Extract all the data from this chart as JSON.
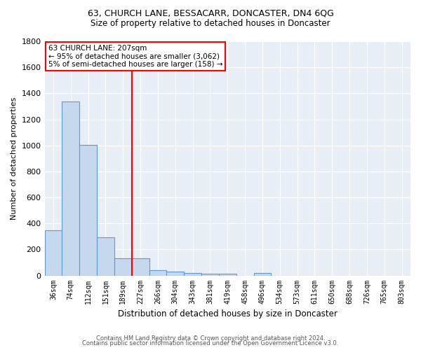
{
  "title": "63, CHURCH LANE, BESSACARR, DONCASTER, DN4 6QG",
  "subtitle": "Size of property relative to detached houses in Doncaster",
  "xlabel": "Distribution of detached houses by size in Doncaster",
  "ylabel": "Number of detached properties",
  "footnote1": "Contains HM Land Registry data © Crown copyright and database right 2024.",
  "footnote2": "Contains public sector information licensed under the Open Government Licence v3.0.",
  "bar_labels": [
    "36sqm",
    "74sqm",
    "112sqm",
    "151sqm",
    "189sqm",
    "227sqm",
    "266sqm",
    "304sqm",
    "343sqm",
    "381sqm",
    "419sqm",
    "458sqm",
    "496sqm",
    "534sqm",
    "573sqm",
    "611sqm",
    "650sqm",
    "688sqm",
    "726sqm",
    "765sqm",
    "803sqm"
  ],
  "bar_values": [
    350,
    1335,
    1005,
    295,
    130,
    130,
    40,
    28,
    18,
    15,
    12,
    0,
    18,
    0,
    0,
    0,
    0,
    0,
    0,
    0,
    0
  ],
  "bar_color": "#c5d8ed",
  "bar_edgecolor": "#5b9bd5",
  "ylim": [
    0,
    1800
  ],
  "yticks": [
    0,
    200,
    400,
    600,
    800,
    1000,
    1200,
    1400,
    1600,
    1800
  ],
  "red_line_x": 4.5,
  "annotation_text": "63 CHURCH LANE: 207sqm\n← 95% of detached houses are smaller (3,062)\n5% of semi-detached houses are larger (158) →",
  "background_color": "#e8eef6"
}
